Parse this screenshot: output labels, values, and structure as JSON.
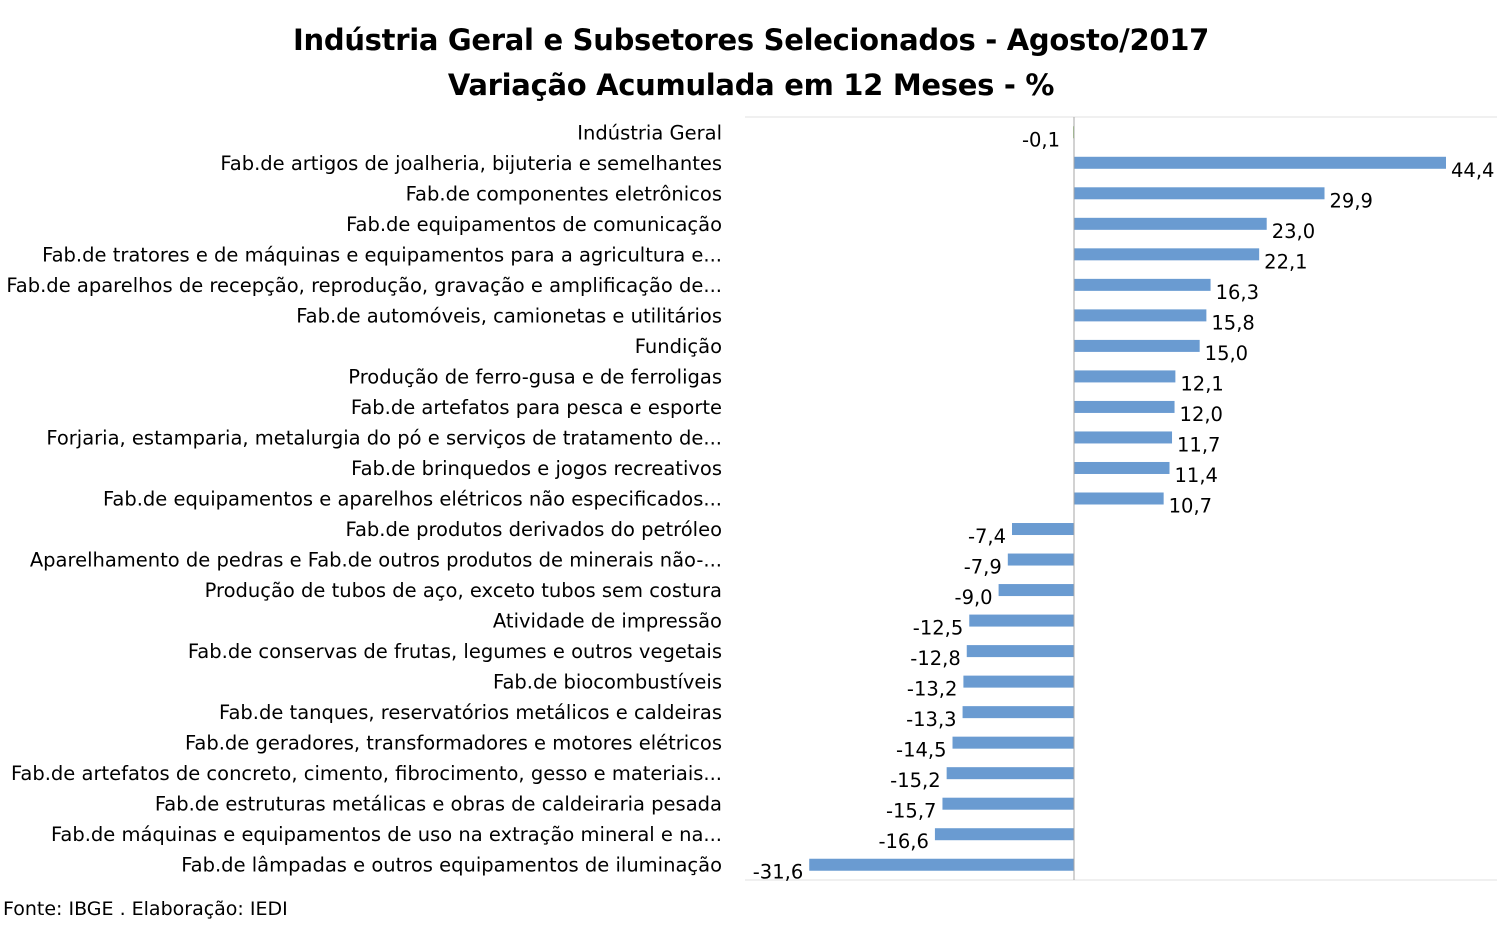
{
  "title": "Indústria Geral e Subsetores Selecionados - Agosto/2017",
  "subtitle": "Variação Acumulada em 12 Meses - %",
  "source": "Fonte: IBGE . Elaboração: IEDI",
  "chart_data": {
    "type": "bar",
    "orientation": "horizontal",
    "title": "Indústria Geral e Subsetores Selecionados - Agosto/2017",
    "subtitle": "Variação Acumulada em 12 Meses - %",
    "xlim": [
      -40,
      50
    ],
    "bar_color": "#6a9bd1",
    "highlight_color": "#70ad47",
    "grid": false,
    "categories": [
      "Indústria Geral",
      "Fab.de artigos de joalheria, bijuteria e semelhantes",
      "Fab.de componentes eletrônicos",
      "Fab.de equipamentos de comunicação",
      "Fab.de tratores e de máquinas e equipamentos para a agricultura e...",
      "Fab.de aparelhos de recepção, reprodução, gravação e amplificação de...",
      "Fab.de automóveis, camionetas e utilitários",
      "Fundição",
      "Produção de ferro-gusa e de ferroligas",
      "Fab.de artefatos para pesca e esporte",
      "Forjaria, estamparia, metalurgia do pó e serviços de tratamento de...",
      "Fab.de brinquedos e jogos recreativos",
      "Fab.de equipamentos e aparelhos elétricos não especificados...",
      "Fab.de produtos derivados do petróleo",
      "Aparelhamento de pedras e Fab.de outros produtos de minerais não-...",
      "Produção de tubos de aço, exceto tubos sem costura",
      "Atividade de impressão",
      "Fab.de conservas de frutas, legumes e outros vegetais",
      "Fab.de biocombustíveis",
      "Fab.de tanques, reservatórios metálicos e caldeiras",
      "Fab.de geradores, transformadores e motores elétricos",
      "Fab.de artefatos de concreto, cimento, fibrocimento, gesso e materiais...",
      "Fab.de estruturas metálicas e obras de caldeiraria pesada",
      "Fab.de máquinas e equipamentos de uso na extração mineral e na...",
      "Fab.de lâmpadas e outros equipamentos de iluminação"
    ],
    "values": [
      -0.1,
      44.4,
      29.9,
      23.0,
      22.1,
      16.3,
      15.8,
      15.0,
      12.1,
      12.0,
      11.7,
      11.4,
      10.7,
      -7.4,
      -7.9,
      -9.0,
      -12.5,
      -12.8,
      -13.2,
      -13.3,
      -14.5,
      -15.2,
      -15.7,
      -16.6,
      -31.6
    ],
    "value_labels": [
      "-0,1",
      "44,4",
      "29,9",
      "23,0",
      "22,1",
      "16,3",
      "15,8",
      "15,0",
      "12,1",
      "12,0",
      "11,7",
      "11,4",
      "10,7",
      "-7,4",
      "-7,9",
      "-9,0",
      "-12,5",
      "-12,8",
      "-13,2",
      "-13,3",
      "-14,5",
      "-15,2",
      "-15,7",
      "-16,6",
      "-31,6"
    ]
  }
}
